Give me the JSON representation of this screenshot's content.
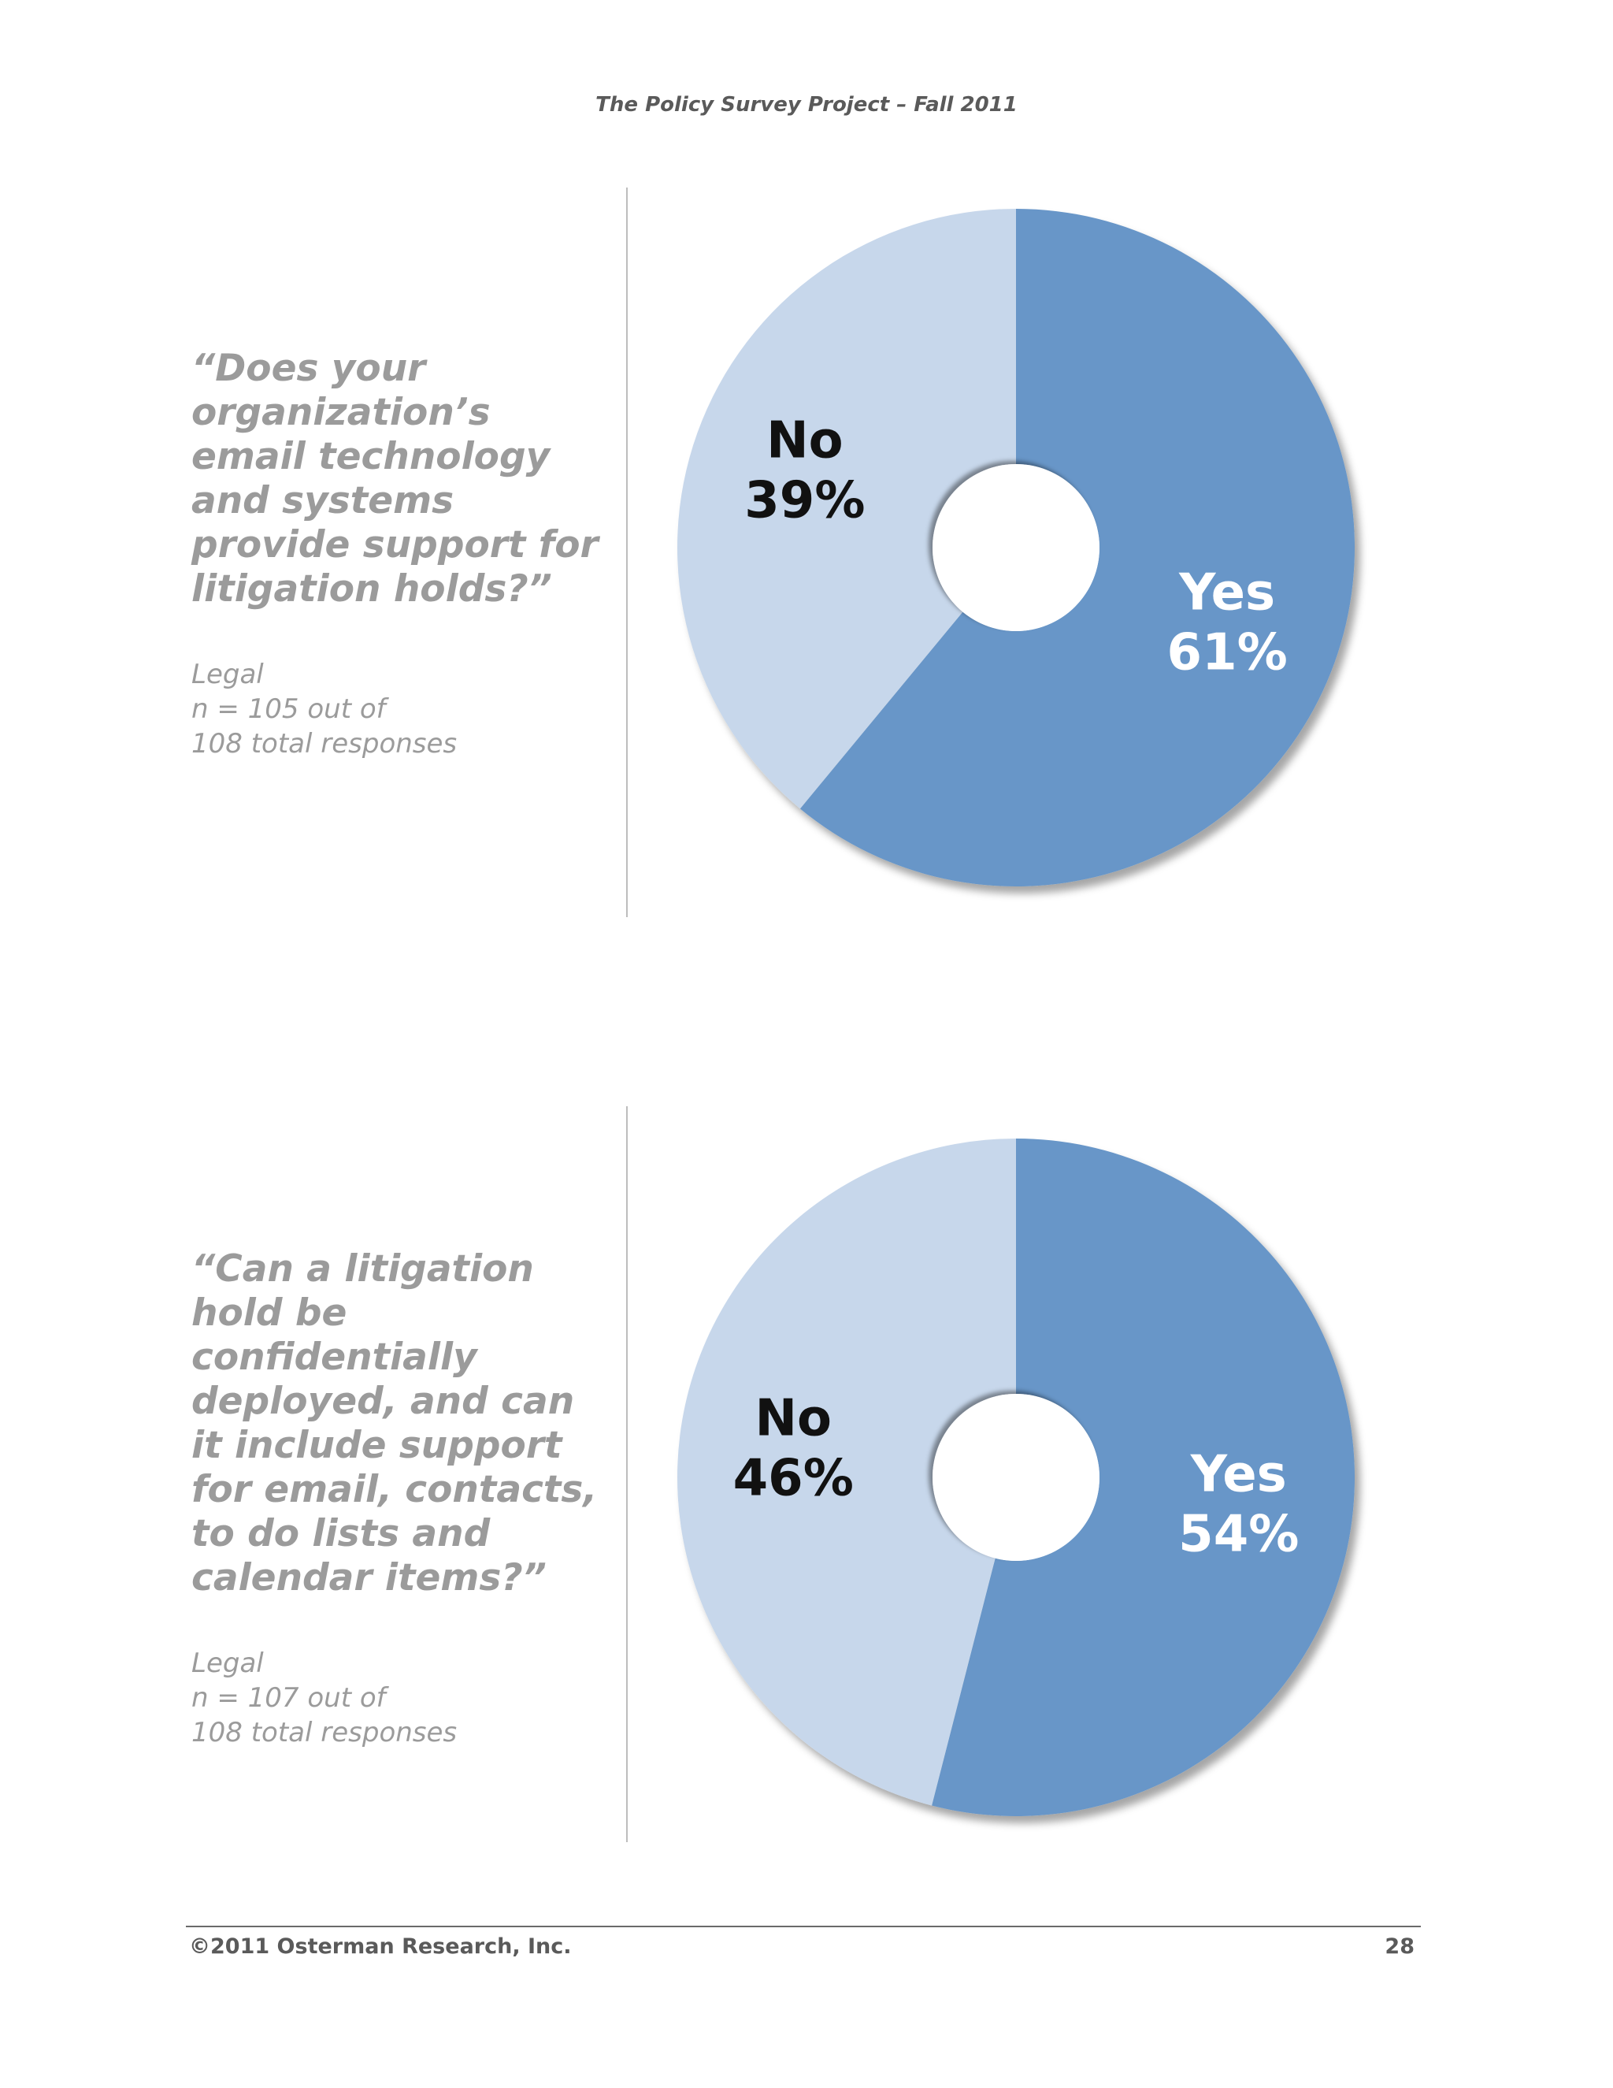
{
  "header": {
    "title": "The Policy Survey Project – Fall 2011"
  },
  "footer": {
    "copyright": "©2011 Osterman Research, Inc.",
    "page_number": "28"
  },
  "questions": [
    {
      "text": "“Does your organization’s email technology and systems provide support for litigation holds?”",
      "meta_lines": [
        "Legal",
        "n = 105 out of",
        "108 total responses"
      ]
    },
    {
      "text": "“Can a litigation hold be confidentially deployed, and can it include support for email, contacts, to do lists and calendar items?”",
      "meta_lines": [
        "Legal",
        "n = 107 out of",
        "108 total responses"
      ]
    }
  ],
  "colors": {
    "yes": "#6796c8",
    "no": "#c7d7eb",
    "yes_label": "#ffffff",
    "no_label": "#111111"
  },
  "chart_data": [
    {
      "type": "pie",
      "variant": "donut",
      "categories": [
        "Yes",
        "No"
      ],
      "values": [
        61,
        39
      ],
      "labels": [
        {
          "category": "Yes",
          "value": "61%"
        },
        {
          "category": "No",
          "value": "39%"
        }
      ]
    },
    {
      "type": "pie",
      "variant": "donut",
      "categories": [
        "Yes",
        "No"
      ],
      "values": [
        54,
        46
      ],
      "labels": [
        {
          "category": "Yes",
          "value": "54%"
        },
        {
          "category": "No",
          "value": "46%"
        }
      ]
    }
  ]
}
